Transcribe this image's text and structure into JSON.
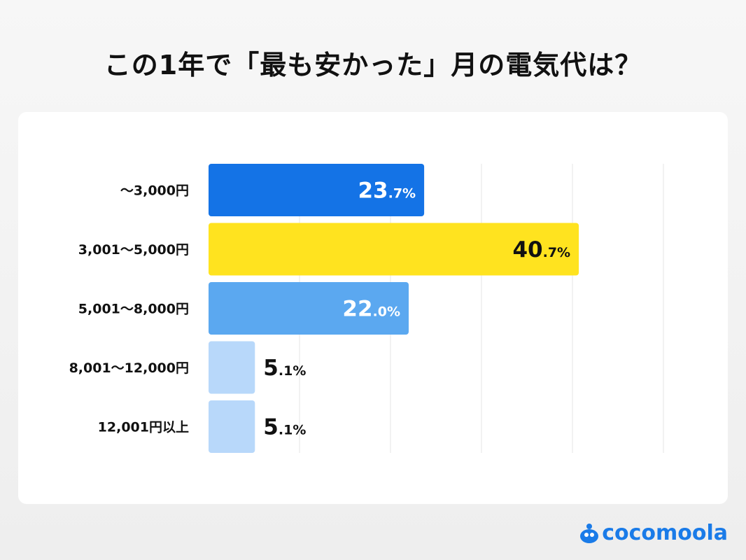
{
  "title": "この1年で「最も安かった」月の電気代は？",
  "chart_data": {
    "type": "bar",
    "orientation": "horizontal",
    "title": "この1年で「最も安かった」月の電気代は？",
    "categories": [
      "〜3,000円",
      "3,001〜5,000円",
      "5,001〜8,000円",
      "8,001〜12,000円",
      "12,001円以上"
    ],
    "values": [
      23.7,
      40.7,
      22.0,
      5.1,
      5.1
    ],
    "unit": "%",
    "xlim": [
      0,
      50
    ],
    "gridlines": [
      10,
      20,
      30,
      40,
      50
    ],
    "grid": true,
    "colors": [
      "#1473E6",
      "#FFE31F",
      "#5BA8F0",
      "#B8D8FA",
      "#B8D8FA"
    ],
    "label_colors": [
      "#ffffff",
      "#111111",
      "#ffffff",
      "#111111",
      "#111111"
    ]
  },
  "logo": {
    "text": "cocomoola",
    "color": "#1a7be8"
  }
}
